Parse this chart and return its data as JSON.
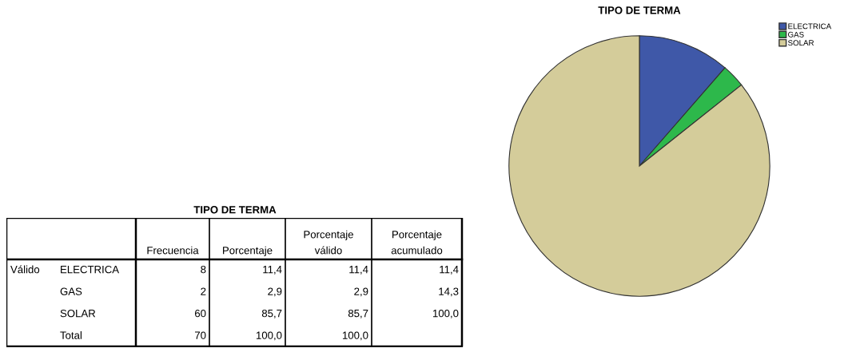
{
  "chart_data": [
    {
      "type": "other",
      "title": "TIPO DE TERMA",
      "categories": [
        null,
        null,
        "Frecuencia",
        "Porcentaje",
        "Porcentaje válido",
        "Porcentaje acumulado"
      ],
      "cell_labels": [
        [
          "Válido",
          "ELECTRICA",
          "8",
          "11,4",
          "11,4",
          "11,4"
        ],
        [
          null,
          "GAS",
          "2",
          "2,9",
          "2,9",
          "14,3"
        ],
        [
          null,
          "SOLAR",
          "60",
          "85,7",
          "85,7",
          "100,0"
        ],
        [
          null,
          "Total",
          "70",
          "100,0",
          "100,0",
          null
        ]
      ]
    },
    {
      "type": "pie",
      "title": "TIPO DE TERMA",
      "categories": [
        "ELECTRICA",
        "GAS",
        "SOLAR"
      ],
      "values": [
        11.4,
        2.9,
        85.7
      ],
      "colors": [
        "#3f58a8",
        "#2db84b",
        "#d4cc9a"
      ],
      "legend": "top right"
    }
  ]
}
